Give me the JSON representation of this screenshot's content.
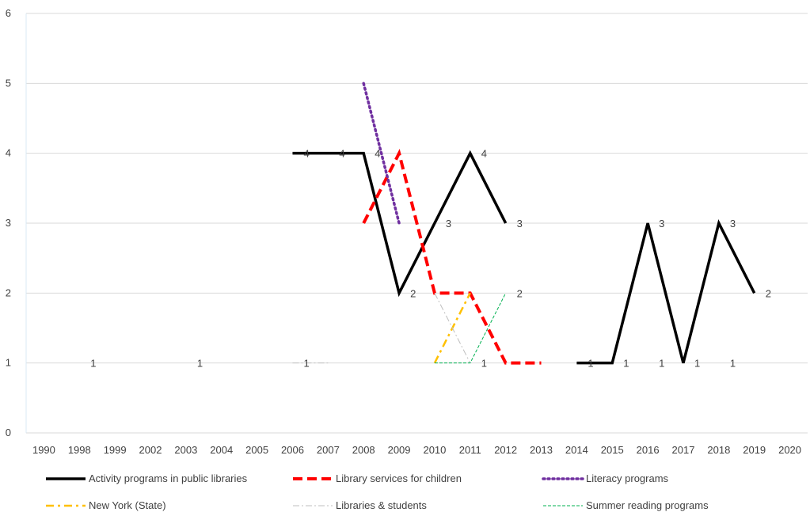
{
  "chart_data": {
    "type": "line",
    "title": "",
    "xlabel": "",
    "ylabel": "",
    "categories": [
      "1990",
      "1998",
      "1999",
      "2002",
      "2003",
      "2004",
      "2005",
      "2006",
      "2007",
      "2008",
      "2009",
      "2010",
      "2011",
      "2012",
      "2013",
      "2014",
      "2015",
      "2016",
      "2017",
      "2018",
      "2019",
      "2020"
    ],
    "ylim": [
      0,
      6
    ],
    "yticks": [
      0,
      1,
      2,
      3,
      4,
      5,
      6
    ],
    "grid": "horizontal",
    "legend_position": "bottom",
    "series": [
      {
        "name": "Activity programs in public libraries",
        "color": "#000000",
        "dash": "solid",
        "values": [
          null,
          null,
          null,
          null,
          null,
          null,
          null,
          4,
          4,
          4,
          2,
          3,
          4,
          3,
          null,
          1,
          1,
          3,
          1,
          3,
          2,
          null
        ],
        "labels": [
          null,
          null,
          null,
          null,
          null,
          null,
          null,
          "4",
          "4",
          "4",
          "2",
          "3",
          "4",
          "3",
          null,
          "1",
          "1",
          "3",
          "1",
          "3",
          "2",
          null
        ]
      },
      {
        "name": "Library services for children",
        "color": "#ff0000",
        "dash": "dash",
        "values": [
          null,
          null,
          null,
          null,
          null,
          null,
          null,
          null,
          null,
          3,
          4,
          2,
          2,
          1,
          1,
          null,
          null,
          null,
          null,
          null,
          null,
          null
        ],
        "labels": []
      },
      {
        "name": "Literacy programs",
        "color": "#7030a0",
        "dash": "dot",
        "values": [
          null,
          null,
          null,
          null,
          null,
          null,
          null,
          null,
          null,
          5,
          3,
          null,
          null,
          null,
          null,
          null,
          null,
          null,
          null,
          null,
          null,
          null
        ],
        "labels": []
      },
      {
        "name": "New York (State)",
        "color": "#ffc000",
        "dash": "dashdot",
        "values": [
          null,
          null,
          null,
          null,
          null,
          null,
          null,
          null,
          null,
          null,
          null,
          1,
          2,
          null,
          null,
          null,
          null,
          null,
          null,
          null,
          null,
          null
        ],
        "labels": []
      },
      {
        "name": "Libraries & students",
        "color": "#bfbfbf",
        "dash": "dashdotthin",
        "values": [
          null,
          null,
          null,
          null,
          null,
          null,
          null,
          1,
          1,
          null,
          null,
          2,
          1,
          null,
          null,
          null,
          null,
          null,
          null,
          null,
          null,
          null
        ],
        "labels": []
      },
      {
        "name": "Summer reading programs",
        "color": "#00b050",
        "dash": "thindash",
        "values": [
          null,
          null,
          null,
          null,
          null,
          null,
          null,
          null,
          null,
          null,
          null,
          1,
          1,
          2,
          null,
          null,
          null,
          null,
          null,
          null,
          null,
          null
        ],
        "labels": []
      }
    ],
    "extra_labels": [
      {
        "category": "1998",
        "y": 1,
        "text": "1"
      },
      {
        "category": "2003",
        "y": 1,
        "text": "1"
      },
      {
        "category": "2006",
        "y": 1,
        "text": "1"
      },
      {
        "category": "2011",
        "y": 1,
        "text": "1"
      },
      {
        "category": "2016",
        "y": 1,
        "text": "1"
      },
      {
        "category": "2018",
        "y": 1,
        "text": "1"
      },
      {
        "category": "2012",
        "y": 2,
        "text": "2"
      }
    ]
  }
}
